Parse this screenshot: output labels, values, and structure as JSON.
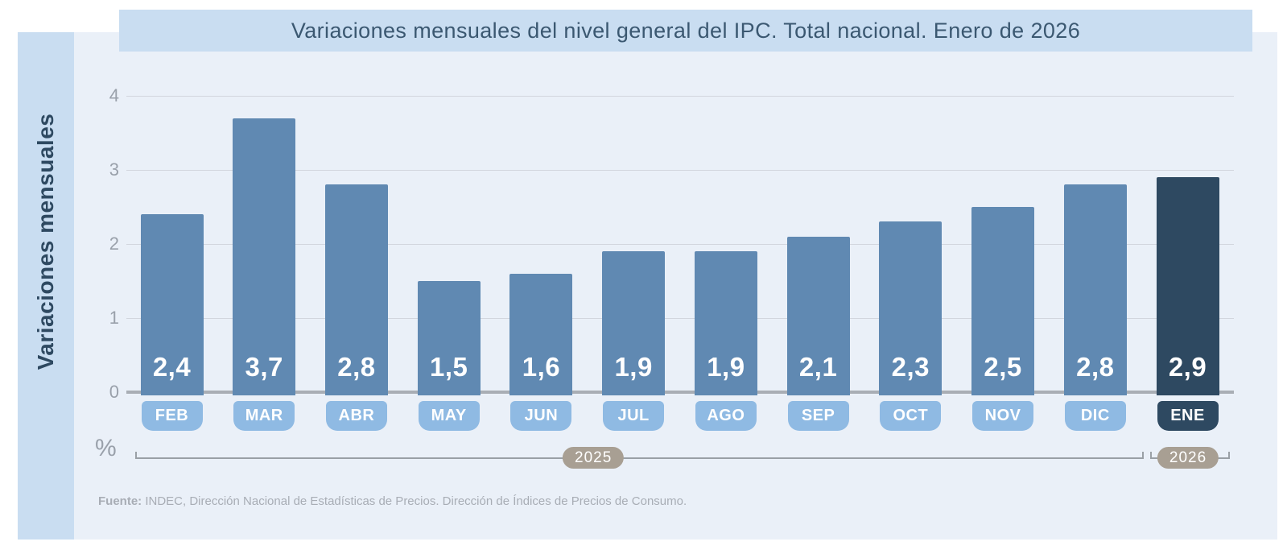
{
  "header": {
    "title": "Variaciones mensuales del nivel general del IPC. Total nacional. Enero de 2026"
  },
  "y_axis": {
    "title": "Variaciones mensuales",
    "unit_label": "%"
  },
  "chart_data": {
    "type": "bar",
    "title": "Variaciones mensuales del nivel general del IPC. Total nacional. Enero de 2026",
    "ylabel": "Variaciones mensuales",
    "y_unit": "%",
    "ylim": [
      0,
      4
    ],
    "yticks": [
      0,
      1,
      2,
      3,
      4
    ],
    "grid": true,
    "legend_position": "none",
    "categories": [
      "FEB",
      "MAR",
      "ABR",
      "MAY",
      "JUN",
      "JUL",
      "AGO",
      "SEP",
      "OCT",
      "NOV",
      "DIC",
      "ENE"
    ],
    "values": [
      2.4,
      3.7,
      2.8,
      1.5,
      1.6,
      1.9,
      1.9,
      2.1,
      2.3,
      2.5,
      2.8,
      2.9
    ],
    "value_labels": [
      "2,4",
      "3,7",
      "2,8",
      "1,5",
      "1,6",
      "1,9",
      "1,9",
      "2,1",
      "2,3",
      "2,5",
      "2,8",
      "2,9"
    ],
    "highlight_category": "ENE",
    "year_groups": [
      {
        "label": "2025",
        "from": "FEB",
        "to": "DIC"
      },
      {
        "label": "2026",
        "from": "ENE",
        "to": "ENE"
      }
    ]
  },
  "source": {
    "prefix": "Fuente:",
    "text": "INDEC, Dirección Nacional de Estadísticas de Precios. Dirección de Índices de Precios de Consumo."
  },
  "colors": {
    "banner_bg": "#c9ddf1",
    "panel_bg": "#eaf0f8",
    "bar": "#6089b2",
    "bar_highlight": "#2e4961",
    "month_chip": "#8fbae3",
    "month_chip_highlight": "#2e4961",
    "year_pill": "#a89f93",
    "title_text": "#3b5871",
    "axis_text": "#99a0aa",
    "gridline": "#d2d6de",
    "zero_line": "#a9aeb5",
    "bracket": "#9aa0a6",
    "source_text": "#a8adb5",
    "value_text": "#ffffff"
  }
}
